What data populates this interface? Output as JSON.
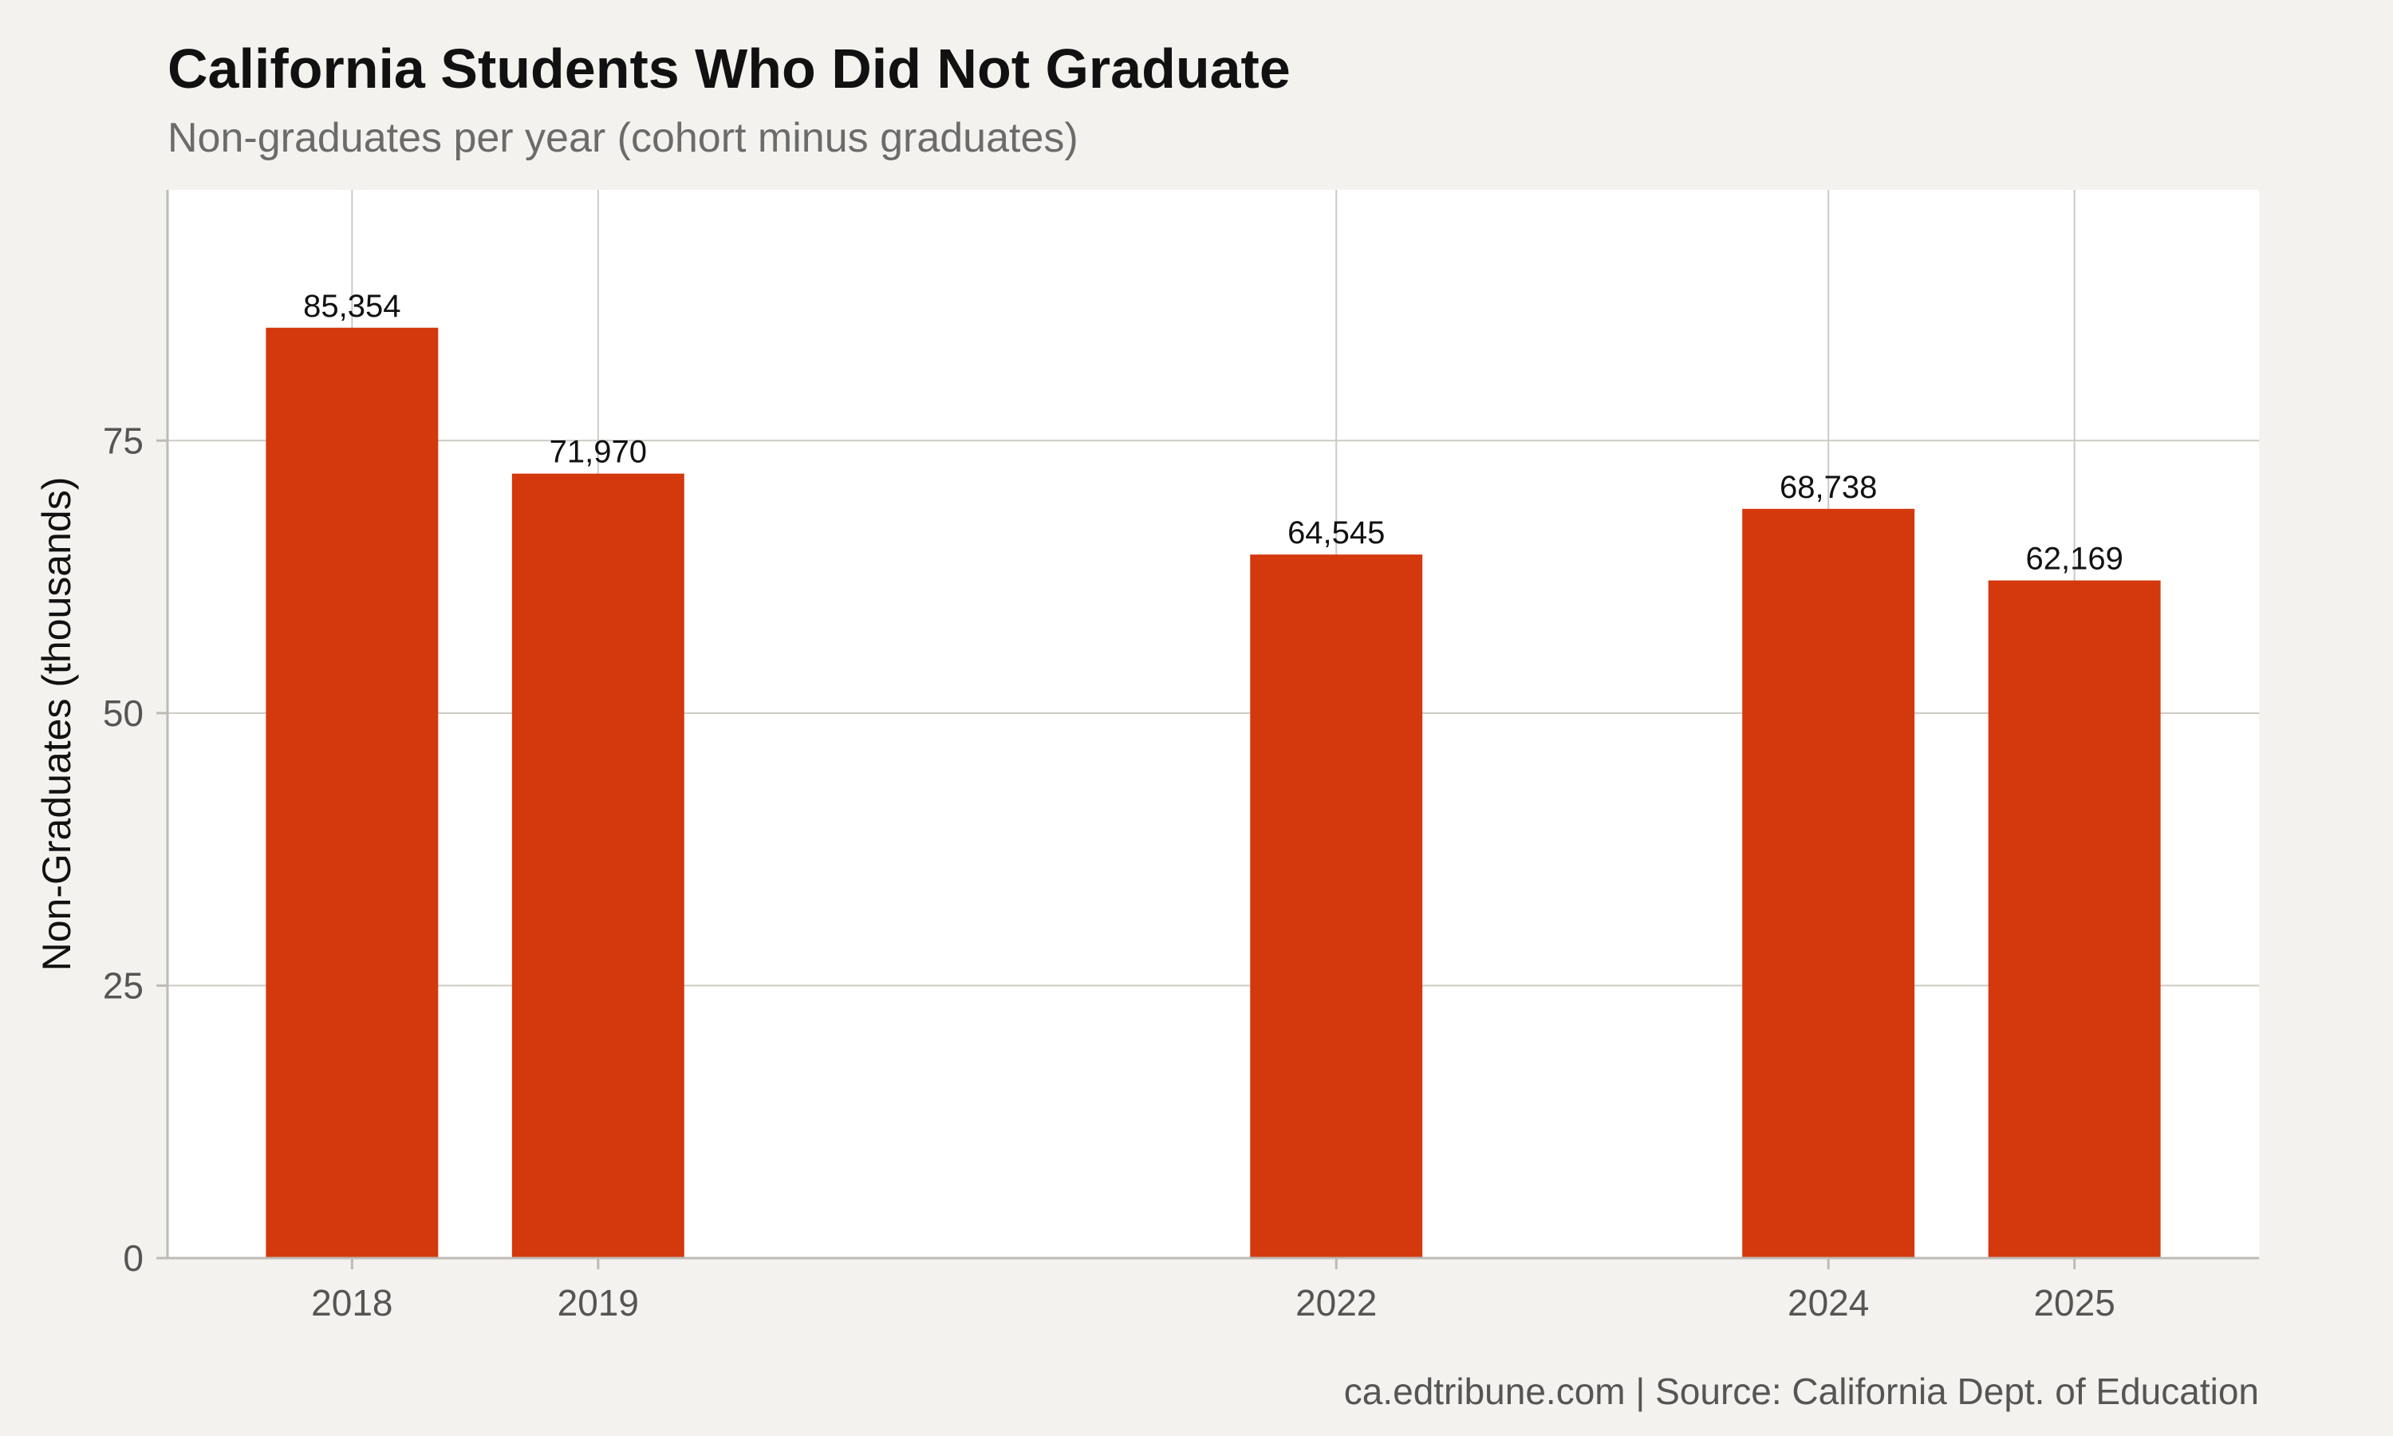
{
  "title": "California Students Who Did Not Graduate",
  "subtitle": "Non-graduates per year (cohort minus graduates)",
  "caption": "ca.edtribune.com | Source: California Dept. of Education",
  "colors": {
    "bar": "#d4380d",
    "background": "#f4f2ee",
    "panel": "#ffffff",
    "grid": "#cccac4",
    "axis": "#bdbbb5"
  },
  "chart_data": {
    "type": "bar",
    "x_axis": "year",
    "categories": [
      "2018",
      "2019",
      "2022",
      "2024",
      "2025"
    ],
    "x": [
      2018,
      2019,
      2022,
      2024,
      2025
    ],
    "values": [
      85.354,
      71.97,
      64.545,
      68.738,
      62.169
    ],
    "data_labels": [
      "85,354",
      "71,970",
      "64,545",
      "68,738",
      "62,169"
    ],
    "xlabel": "",
    "ylabel": "Non-Graduates (thousands)",
    "xlim": [
      2017.25,
      2025.75
    ],
    "ylim": [
      0,
      98
    ],
    "yticks": [
      0,
      25,
      50,
      75
    ],
    "grid": true,
    "legend": "none"
  }
}
